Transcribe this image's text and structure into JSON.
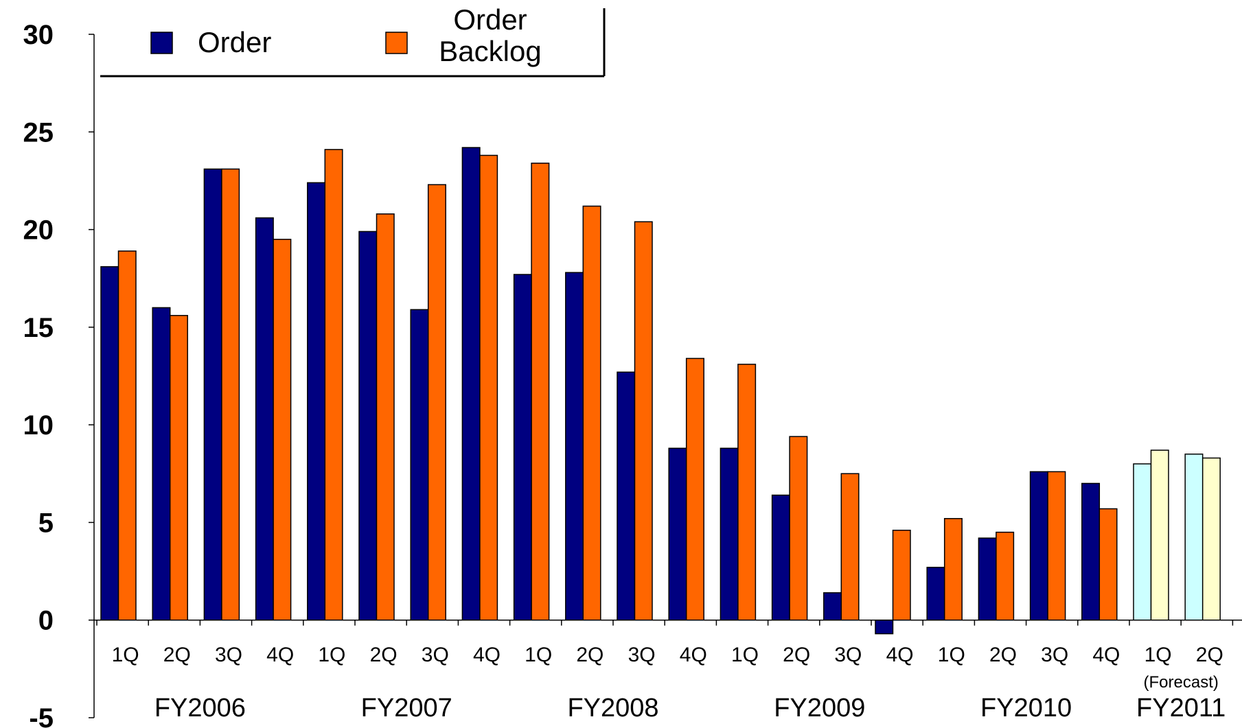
{
  "chart_data": {
    "type": "bar",
    "ylim": [
      -5,
      30
    ],
    "yticks": [
      "30",
      "25",
      "20",
      "15",
      "10",
      "5",
      "0",
      "-5"
    ],
    "quarters": [
      "1Q",
      "2Q",
      "3Q",
      "4Q",
      "1Q",
      "2Q",
      "3Q",
      "4Q",
      "1Q",
      "2Q",
      "3Q",
      "4Q",
      "1Q",
      "2Q",
      "3Q",
      "4Q",
      "1Q",
      "2Q",
      "3Q",
      "4Q",
      "1Q",
      "2Q"
    ],
    "groups": [
      {
        "label": "FY2006",
        "start": 0,
        "count": 4
      },
      {
        "label": "FY2007",
        "start": 4,
        "count": 4
      },
      {
        "label": "FY2008",
        "start": 8,
        "count": 4
      },
      {
        "label": "FY2009",
        "start": 12,
        "count": 4
      },
      {
        "label": "FY2010",
        "start": 16,
        "count": 4
      },
      {
        "label": "FY2011",
        "start": 20,
        "count": 2
      }
    ],
    "forecast_note": "(Forecast)",
    "forecast_start": 20,
    "series": [
      {
        "name": "Order",
        "color": "#000080",
        "forecast_color": "#ccffff",
        "values": [
          18.1,
          16.0,
          23.1,
          20.6,
          22.4,
          19.9,
          15.9,
          24.2,
          17.7,
          17.8,
          12.7,
          8.8,
          8.8,
          6.4,
          1.4,
          -0.7,
          2.7,
          4.2,
          7.6,
          7.0,
          8.0,
          8.5
        ]
      },
      {
        "name": "Order\nBacklog",
        "color": "#ff6600",
        "forecast_color": "#ffffcc",
        "values": [
          18.9,
          15.6,
          23.1,
          19.5,
          24.1,
          20.8,
          22.3,
          23.8,
          23.4,
          21.2,
          20.4,
          13.4,
          13.1,
          9.4,
          7.5,
          4.6,
          5.2,
          4.5,
          7.6,
          5.7,
          8.7,
          8.3
        ]
      }
    ],
    "legend": {
      "order": "Order",
      "backlog_line1": "Order",
      "backlog_line2": "Backlog"
    }
  }
}
